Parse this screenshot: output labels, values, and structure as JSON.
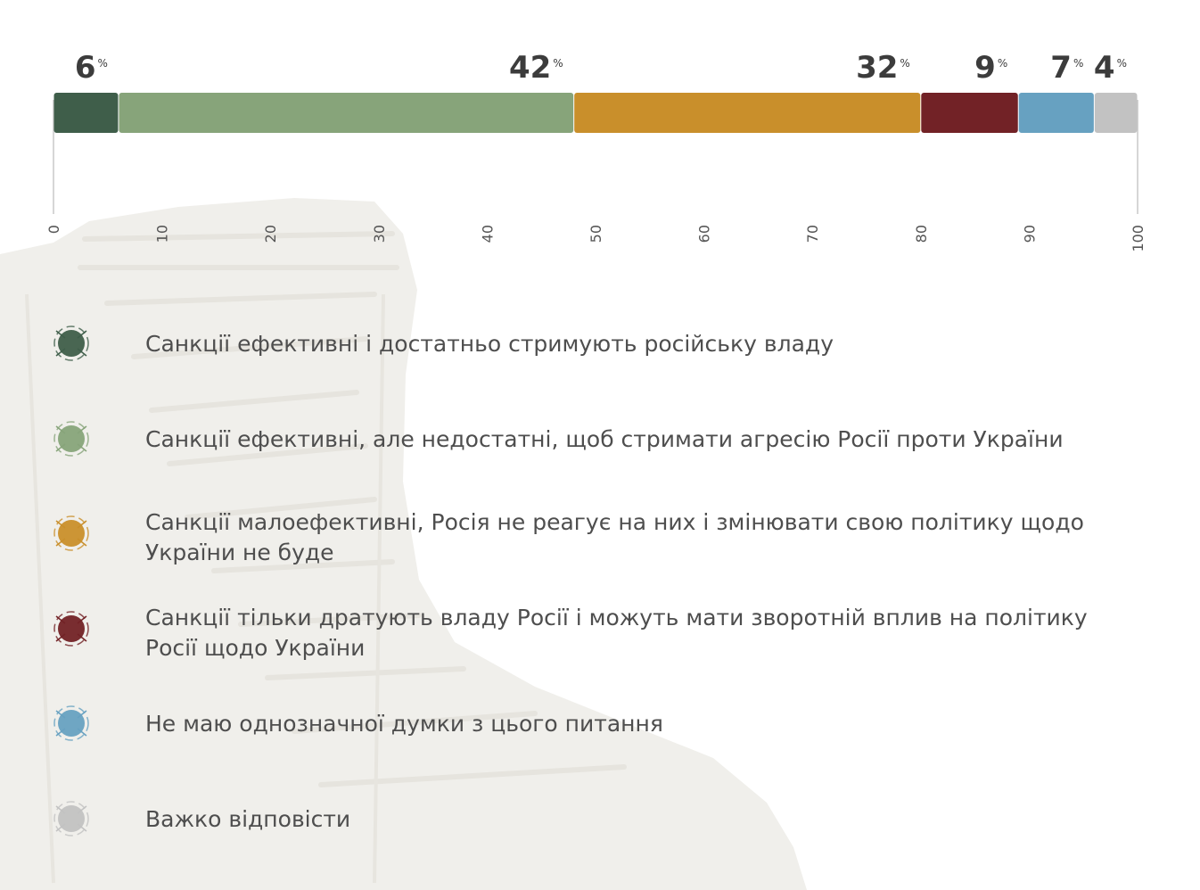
{
  "chart_data": {
    "type": "bar",
    "orientation": "horizontal-stacked",
    "title": "",
    "xlabel": "",
    "ylabel": "",
    "xlim": [
      0,
      100
    ],
    "ticks": [
      "0",
      "10",
      "20",
      "30",
      "40",
      "50",
      "60",
      "70",
      "80",
      "90",
      "100"
    ],
    "unit_label": "%",
    "series": [
      {
        "name": "Санкції ефективні і достатньо стримують російську владу",
        "lines": [
          "Санкції ефективні і достатньо стримують російську владу"
        ],
        "value": 6,
        "label": "6",
        "color": "#3f5e4a"
      },
      {
        "name": "Санкції ефективні, але недостатні, щоб стримати агресію Росії проти України",
        "lines": [
          "Санкції ефективні, але недостатні, щоб стримати агресію Росії проти України"
        ],
        "value": 42,
        "label": "42",
        "color": "#87a47a"
      },
      {
        "name": "Санкції малоефективні, Росія не реагує на них і змінювати свою політику щодо України не буде",
        "lines": [
          "Санкції малоефективні, Росія не реагує на них і змінювати свою політику щодо",
          "України не буде"
        ],
        "value": 32,
        "label": "32",
        "color": "#c98f2b"
      },
      {
        "name": "Санкції тільки дратують владу Росії і можуть мати зворотній вплив на політику Росії щодо України",
        "lines": [
          "Санкції тільки дратують владу Росії і можуть мати зворотній вплив на політику",
          "Росії щодо України"
        ],
        "value": 9,
        "label": "9",
        "color": "#722226"
      },
      {
        "name": "Не маю однозначної думки з цього питання",
        "lines": [
          "Не маю однозначної думки з цього питання"
        ],
        "value": 7,
        "label": "7",
        "color": "#67a1c1"
      },
      {
        "name": "Важко відповісти",
        "lines": [
          "Важко відповісти"
        ],
        "value": 4,
        "label": "4",
        "color": "#c2c2c2"
      }
    ],
    "legend_position": "bottom-left",
    "grid": false
  }
}
